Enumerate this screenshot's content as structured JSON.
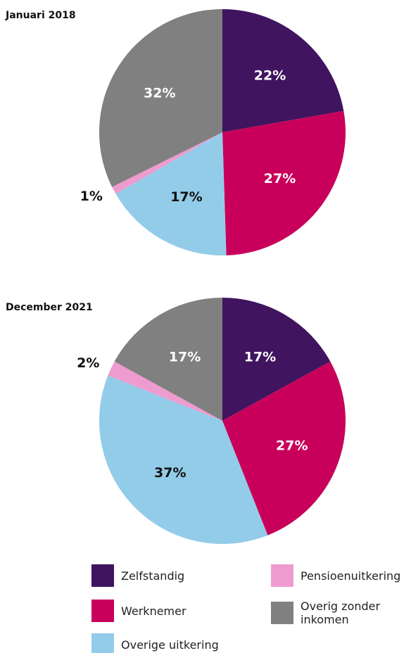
{
  "chart_data": [
    {
      "type": "pie",
      "title": "Januari 2018",
      "categories": [
        "Zelfstandig",
        "Werknemer",
        "Overige uitkering",
        "Pensioenuitkering",
        "Overig zonder inkomen"
      ],
      "values": [
        22,
        27,
        17,
        1,
        32
      ],
      "colors": [
        "#40145f",
        "#c9005b",
        "#93cce9",
        "#ee9bd0",
        "#808080"
      ],
      "legend": "bottom"
    },
    {
      "type": "pie",
      "title": "December 2021",
      "categories": [
        "Zelfstandig",
        "Werknemer",
        "Overige uitkering",
        "Pensioenuitkering",
        "Overig zonder inkomen"
      ],
      "values": [
        17,
        27,
        37,
        2,
        17
      ],
      "colors": [
        "#40145f",
        "#c9005b",
        "#93cce9",
        "#ee9bd0",
        "#808080"
      ]
    }
  ]
}
